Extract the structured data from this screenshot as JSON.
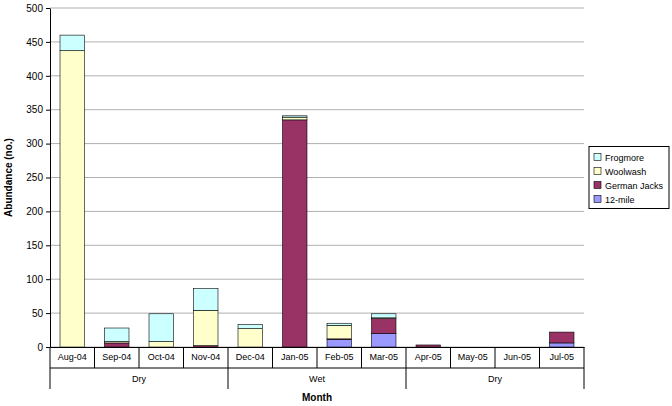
{
  "chart_data": {
    "type": "bar",
    "stacked": true,
    "grid": true,
    "legend": "right",
    "x_label": "Month",
    "y_label": "Abundance (no.)",
    "categories": [
      "Aug-04",
      "Sep-04",
      "Oct-04",
      "Nov-04",
      "Dec-04",
      "Jan-05",
      "Feb-05",
      "Mar-05",
      "Apr-05",
      "May-05",
      "Jun-05",
      "Jul-05"
    ],
    "category_groups": [
      "Dry",
      "Dry",
      "Dry",
      "Dry",
      "Wet",
      "Wet",
      "Wet",
      "Wet",
      "Dry",
      "Dry",
      "Dry",
      "Dry"
    ],
    "series": [
      {
        "name": "12-mile",
        "color": "#9999ff",
        "values": [
          0,
          0,
          0,
          0,
          0,
          0,
          11,
          20,
          0,
          0,
          0,
          6
        ]
      },
      {
        "name": "German Jacks",
        "color": "#993366",
        "values": [
          0,
          6,
          0,
          2,
          0,
          335,
          1,
          22,
          3,
          0,
          0,
          16
        ]
      },
      {
        "name": "Woolwash",
        "color": "#ffffcc",
        "values": [
          437,
          2,
          8,
          52,
          27,
          4,
          20,
          1,
          0,
          0,
          0,
          0
        ]
      },
      {
        "name": "Frogmore",
        "color": "#ccffff",
        "values": [
          23,
          20,
          41,
          32,
          6,
          2,
          3,
          6,
          0,
          0,
          0,
          0
        ]
      }
    ],
    "ylim": [
      0,
      500
    ],
    "yticks": [
      0,
      50,
      100,
      150,
      200,
      250,
      300,
      350,
      400,
      450,
      500
    ]
  }
}
